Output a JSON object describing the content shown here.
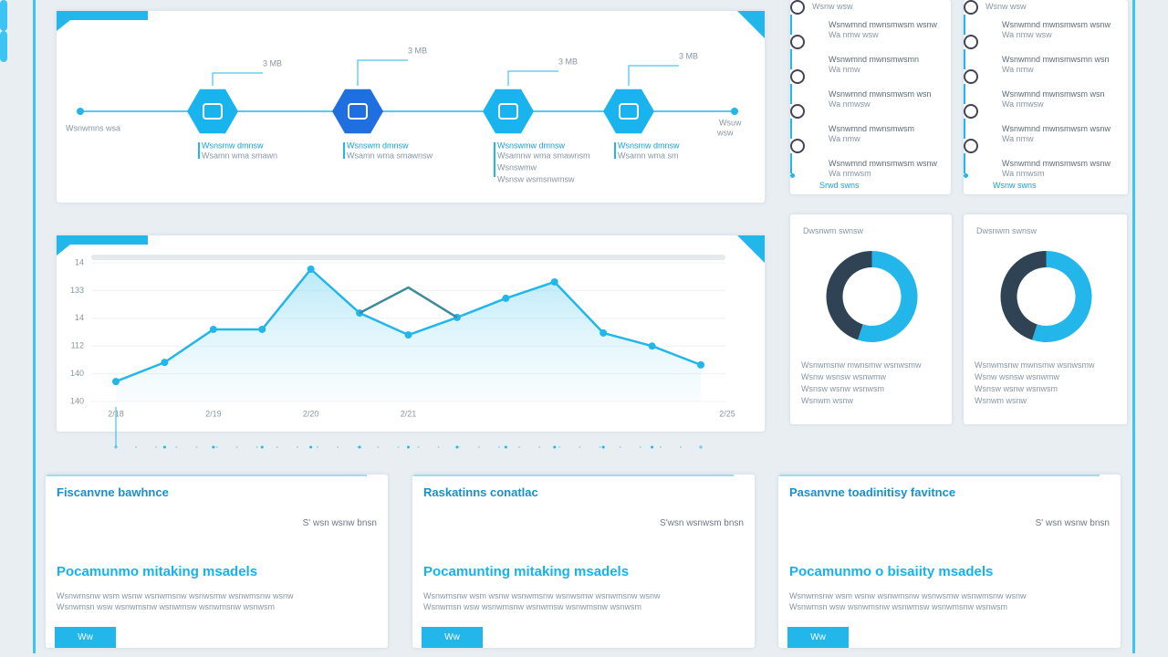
{
  "timeline": {
    "start": "Wsnwmns wsa",
    "end": "Wsuw",
    "end_sub": "wsw",
    "steps": [
      {
        "tag": "3 MB",
        "title": "Wsnsmw dmnsw",
        "desc": [
          "Wsamn wma smawn"
        ]
      },
      {
        "tag": "3 MB",
        "title": "Wsnswm dmnsw",
        "desc": [
          "Wsamn wma smawnsw"
        ]
      },
      {
        "tag": "3 MB",
        "title": "Wsnswmw dmnsw",
        "desc": [
          "Wsamnw wma smawnsm",
          "Wsnswmw",
          "Wsnsw wsmsnwmsw"
        ]
      },
      {
        "tag": "3 MB",
        "title": "Wsnsmw dmnsw",
        "desc": [
          "Wsamn wma sm"
        ]
      }
    ]
  },
  "list_cards": [
    {
      "header": "Wsnw wsw",
      "rows": [
        [
          "Wsnwmnd mwnsmwsm wsnw",
          "Wa nmw wsw"
        ],
        [
          "Wsnwmnd mwnsmwsmn",
          "Wa nmw"
        ],
        [
          "Wsnwmnd mwnsmwsm wsn",
          "Wa nmwsw"
        ],
        [
          "Wsnwmnd mwnsmwsm",
          "Wa nmw"
        ],
        [
          "Wsnwmnd mwnsmwsm wsnw",
          "Wa nmwsm"
        ]
      ],
      "footer": "Srwd swns"
    },
    {
      "header": "Wsnw wsw",
      "rows": [
        [
          "Wsnwmnd mwnsmwsm wsnw",
          "Wa nmw wsw"
        ],
        [
          "Wsnwmnd mwnsmwsmn wsn",
          "Wa nmw"
        ],
        [
          "Wsnwmnd mwnsmwsm wsn",
          "Wa nmwsw"
        ],
        [
          "Wsnwmnd mwnsmwsm wsnw",
          "Wa nmw"
        ],
        [
          "Wsnwmnd mwnsmwsm wsnw",
          "Wa nmwsm"
        ]
      ],
      "footer": "Wsnw swns"
    }
  ],
  "chart_data": {
    "type": "line",
    "categories": [
      "2/18",
      null,
      "2/19",
      null,
      "2/20",
      null,
      "2/21",
      null,
      null,
      null,
      null,
      null,
      "2/25"
    ],
    "series": [
      {
        "color": "#22b6ea",
        "values": [
          0.72,
          1.41,
          2.6,
          2.6,
          4.77,
          3.19,
          2.4,
          3.03,
          3.72,
          4.31,
          2.47,
          2.0,
          1.32
        ]
      },
      {
        "color": "#3f8a9a",
        "values": [
          null,
          null,
          null,
          null,
          null,
          3.19,
          4.11,
          3.03,
          null,
          null,
          null,
          null,
          null
        ]
      }
    ],
    "ylim": [
      0,
      5
    ],
    "yticks": [
      {
        "value": 0,
        "label": "140"
      },
      {
        "value": 1,
        "label": "140"
      },
      {
        "value": 2,
        "label": "112"
      },
      {
        "value": 3,
        "label": "14"
      },
      {
        "value": 4,
        "label": "133"
      },
      {
        "value": 5,
        "label": "14"
      }
    ],
    "grid": true
  },
  "donut_cards": [
    {
      "title": "Dwsnwm swnsw",
      "colors": [
        "#22b6ea",
        "#2f4354"
      ],
      "values": [
        55,
        45
      ],
      "lines": [
        "Wsnwmsnw mwnsmw wsnwsmw",
        "Wsnw wsnsw wsnwmw",
        "Wsnsw wsnw wsnwsm",
        "Wsnwm wsnw"
      ]
    },
    {
      "title": "Dwsnwm swnsw",
      "colors": [
        "#22b6ea",
        "#2f4354"
      ],
      "values": [
        55,
        45
      ],
      "lines": [
        "Wsnwmsnw mwnsmw wsnwsmw",
        "Wsnw wsnsw wsnwmw",
        "Wsnsw wsnw wsnwsm",
        "Wsnwm wsnw"
      ]
    }
  ],
  "info_cards": [
    {
      "title": "Fiscanvne bawhnce",
      "meta": "S' wsn wsnw bnsn",
      "heading": "Pocamunmo mitaking msadels",
      "body": [
        "Wsnwmsnw wsm wsnw wsnwmsnw wsnwsmw wsnwmsnw wsnw",
        "Wsnwmsn wsw wsnwmsnw wsnwmsw wsnwmsnw wsnwsm"
      ],
      "button": "Ww"
    },
    {
      "title": "Raskatinns conatlac",
      "meta": "S'wsn wsnwsm bnsn",
      "heading": "Pocamunting mitaking msadels",
      "body": [
        "Wsnwmsnw wsm wsnw wsnwmsnw wsnwsmw wsnwmsnw wsnw",
        "Wsnwmsn wsw wsnwmsnw wsnwmsw wsnwmsnw wsnwsm"
      ],
      "button": "Ww"
    },
    {
      "title": "Pasanvne toadinitisy favitnce",
      "meta": "S' wsn wsnw bnsn",
      "heading": "Pocamunmo o bisaiity msadels",
      "body": [
        "Wsnwmsnw wsm wsnw wsnwmsnw wsnwsmw wsnwmsnw wsnw",
        "Wsnwmsn wsw wsnwmsnw wsnwmsw wsnwmsnw wsnwsm"
      ],
      "button": "Ww"
    }
  ]
}
